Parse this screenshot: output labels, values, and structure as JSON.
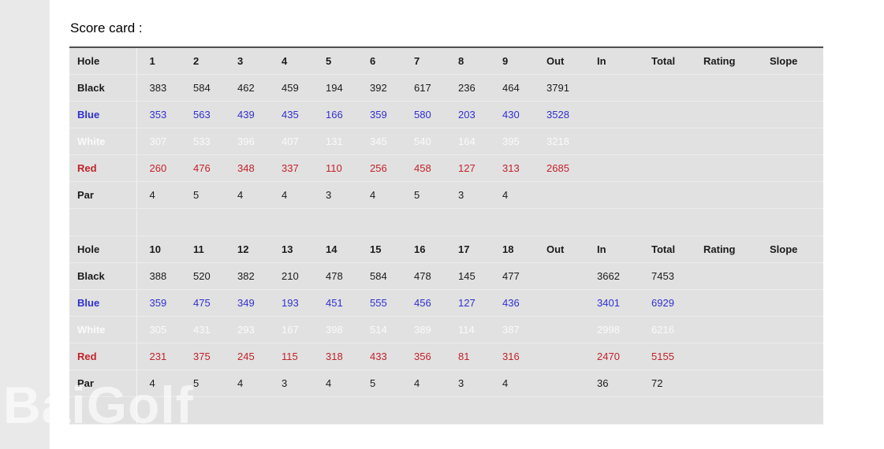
{
  "page": {
    "title": "Score card :",
    "watermark": "BaiGolf"
  },
  "colors": {
    "page_background": "#ffffff",
    "left_strip": "#e9e9e9",
    "table_background": "#e1e1e1",
    "table_top_border": "#4f4f4f",
    "text_black": "#1b1b1b",
    "text_blue": "#3030cf",
    "text_white": "#fafafa",
    "text_red": "#c2222a"
  },
  "scorecard": {
    "sections": [
      {
        "name": "front-nine",
        "headers": [
          "Hole",
          "1",
          "2",
          "3",
          "4",
          "5",
          "6",
          "7",
          "8",
          "9",
          "Out",
          "In",
          "Total",
          "Rating",
          "Slope"
        ],
        "rows": [
          {
            "label": "Black",
            "tee": "black",
            "values": [
              "383",
              "584",
              "462",
              "459",
              "194",
              "392",
              "617",
              "236",
              "464",
              "3791",
              "",
              "",
              "",
              ""
            ]
          },
          {
            "label": "Blue",
            "tee": "blue",
            "values": [
              "353",
              "563",
              "439",
              "435",
              "166",
              "359",
              "580",
              "203",
              "430",
              "3528",
              "",
              "",
              "",
              ""
            ]
          },
          {
            "label": "White",
            "tee": "white",
            "values": [
              "307",
              "533",
              "396",
              "407",
              "131",
              "345",
              "540",
              "164",
              "395",
              "3218",
              "",
              "",
              "",
              ""
            ]
          },
          {
            "label": "Red",
            "tee": "red",
            "values": [
              "260",
              "476",
              "348",
              "337",
              "110",
              "256",
              "458",
              "127",
              "313",
              "2685",
              "",
              "",
              "",
              ""
            ]
          },
          {
            "label": "Par",
            "tee": "black",
            "values": [
              "4",
              "5",
              "4",
              "4",
              "3",
              "4",
              "5",
              "3",
              "4",
              "",
              "",
              "",
              "",
              ""
            ]
          }
        ]
      },
      {
        "name": "back-nine",
        "headers": [
          "Hole",
          "10",
          "11",
          "12",
          "13",
          "14",
          "15",
          "16",
          "17",
          "18",
          "Out",
          "In",
          "Total",
          "Rating",
          "Slope"
        ],
        "rows": [
          {
            "label": "Black",
            "tee": "black",
            "values": [
              "388",
              "520",
              "382",
              "210",
              "478",
              "584",
              "478",
              "145",
              "477",
              "",
              "3662",
              "7453",
              "",
              ""
            ]
          },
          {
            "label": "Blue",
            "tee": "blue",
            "values": [
              "359",
              "475",
              "349",
              "193",
              "451",
              "555",
              "456",
              "127",
              "436",
              "",
              "3401",
              "6929",
              "",
              ""
            ]
          },
          {
            "label": "White",
            "tee": "white",
            "values": [
              "305",
              "431",
              "293",
              "167",
              "398",
              "514",
              "389",
              "114",
              "387",
              "",
              "2998",
              "6216",
              "",
              ""
            ]
          },
          {
            "label": "Red",
            "tee": "red",
            "values": [
              "231",
              "375",
              "245",
              "115",
              "318",
              "433",
              "356",
              "81",
              "316",
              "",
              "2470",
              "5155",
              "",
              ""
            ]
          },
          {
            "label": "Par",
            "tee": "black",
            "values": [
              "4",
              "5",
              "4",
              "3",
              "4",
              "5",
              "4",
              "3",
              "4",
              "",
              "36",
              "72",
              "",
              ""
            ]
          }
        ]
      }
    ]
  }
}
